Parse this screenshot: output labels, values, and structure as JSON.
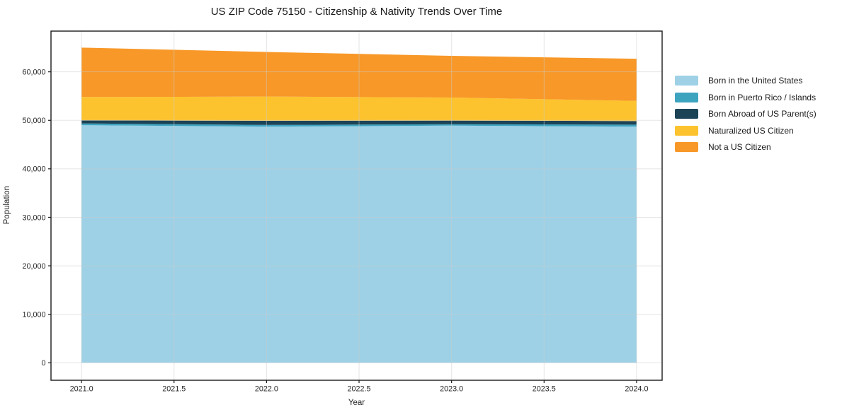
{
  "chart_data": {
    "type": "area",
    "stacked": true,
    "title": "US ZIP Code 75150 - Citizenship & Nativity Trends Over Time",
    "xlabel": "Year",
    "ylabel": "Population",
    "x": [
      2021,
      2022,
      2023,
      2024
    ],
    "series": [
      {
        "name": "Born in the United States",
        "color": "#9ED1E6",
        "values": [
          49000,
          48700,
          48900,
          48700
        ]
      },
      {
        "name": "Born in Puerto Rico / Islands",
        "color": "#3DA4C0",
        "values": [
          350,
          350,
          300,
          400
        ]
      },
      {
        "name": "Born Abroad of US Parent(s)",
        "color": "#1D4356",
        "values": [
          650,
          850,
          750,
          750
        ]
      },
      {
        "name": "Naturalized US Citizen",
        "color": "#FDC32E",
        "values": [
          4800,
          5000,
          4750,
          4150
        ]
      },
      {
        "name": "Not a US Citizen",
        "color": "#F89828",
        "values": [
          10200,
          9200,
          8600,
          8700
        ]
      }
    ],
    "totals": [
      65000,
      64100,
      63300,
      62700
    ],
    "x_ticks": {
      "values": [
        2021.0,
        2021.5,
        2022.0,
        2022.5,
        2023.0,
        2023.5,
        2024.0
      ],
      "labels": [
        "2021.0",
        "2021.5",
        "2022.0",
        "2022.5",
        "2023.0",
        "2023.5",
        "2024.0"
      ]
    },
    "y_ticks": {
      "values": [
        0,
        10000,
        20000,
        30000,
        40000,
        50000,
        60000
      ],
      "labels": [
        "0",
        "10,000",
        "20,000",
        "30,000",
        "40,000",
        "50,000",
        "60,000"
      ]
    },
    "xlim": [
      2020.835,
      2024.138
    ],
    "ylim": [
      -3600,
      68400
    ],
    "grid": true,
    "legend_position": "right",
    "colors": {
      "background": "#ffffff",
      "plot_border": "#1a1a1a",
      "grid_line": "rgba(203,203,203,0.5)",
      "tick_text": "#262626"
    }
  }
}
